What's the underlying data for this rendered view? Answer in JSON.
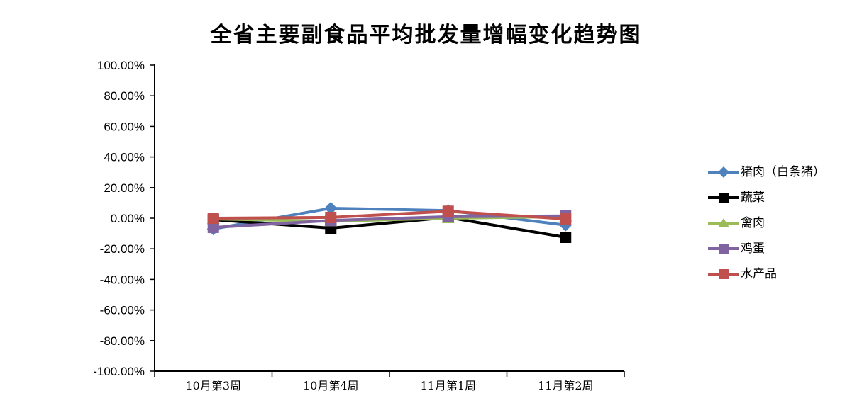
{
  "chart_data": {
    "type": "line",
    "title": "全省主要副食品平均批发量增幅变化趋势图",
    "categories": [
      "10月第3周",
      "10月第4周",
      "11月第1周",
      "11月第2周"
    ],
    "series": [
      {
        "name": "猪肉（白条猪）",
        "color": "#4F81BD",
        "marker": "diamond",
        "values": [
          -7.0,
          6.5,
          5.0,
          -4.5
        ]
      },
      {
        "name": "蔬菜",
        "color": "#000000",
        "marker": "square",
        "values": [
          -1.0,
          -6.5,
          0.5,
          -12.5
        ]
      },
      {
        "name": "禽肉",
        "color": "#9BBB59",
        "marker": "triangle",
        "values": [
          -0.5,
          -2.0,
          0.0,
          1.0
        ]
      },
      {
        "name": "鸡蛋",
        "color": "#8064A2",
        "marker": "square",
        "values": [
          -6.0,
          -1.5,
          1.0,
          1.5
        ]
      },
      {
        "name": "水产品",
        "color": "#C0504D",
        "marker": "square",
        "values": [
          0.0,
          0.5,
          4.5,
          -0.5
        ]
      }
    ],
    "ylabel": "",
    "xlabel": "",
    "ylim": [
      -100,
      100
    ],
    "ytick_step": 20,
    "ytick_labels": [
      "100.00%",
      "80.00%",
      "60.00%",
      "40.00%",
      "20.00%",
      "0.00%",
      "-20.00%",
      "-40.00%",
      "-60.00%",
      "-80.00%",
      "-100.00%"
    ],
    "value_unit": "percent",
    "grid": false,
    "legend_position": "right",
    "axis_color": "#000000",
    "background_color": "#ffffff"
  }
}
